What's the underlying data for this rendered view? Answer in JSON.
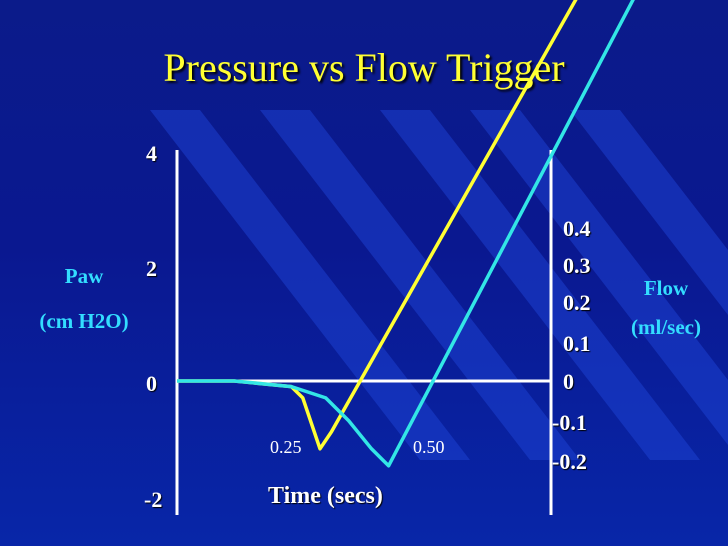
{
  "slide": {
    "title": "Pressure vs Flow Trigger"
  },
  "colors": {
    "background": "#0a1890",
    "title": "#ffff33",
    "pressure_line": "#ffff33",
    "flow_line": "#33e6e6",
    "axis": "#ffffff",
    "axis_label": "#33ddff"
  },
  "chart_data": {
    "type": "line",
    "title": "Pressure vs Flow Trigger",
    "xlabel": "Time (secs)",
    "x_ticks": [
      "0.25",
      "0.50"
    ],
    "left_axis": {
      "label_line1": "Paw",
      "label_line2": "(cm H2O)",
      "ticks": [
        "4",
        "2",
        "0",
        "-2"
      ],
      "ylim": [
        -2,
        4
      ]
    },
    "right_axis": {
      "label_line1": "Flow",
      "label_line2": "(ml/sec)",
      "ticks": [
        "0.4",
        "0.3",
        "0.2",
        "0.1",
        "0",
        "-0.1",
        "-0.2"
      ]
    },
    "series": [
      {
        "color": "#ffff33",
        "x": [
          0.0,
          0.1,
          0.2,
          0.22,
          0.25,
          0.27,
          0.7
        ],
        "y": [
          0.0,
          0.0,
          -0.1,
          -0.3,
          -1.2,
          -0.9,
          6.8
        ]
      },
      {
        "color": "#33e6e6",
        "x": [
          0.0,
          0.1,
          0.2,
          0.26,
          0.3,
          0.34,
          0.37,
          0.8
        ],
        "y": [
          0.0,
          0.0,
          -0.1,
          -0.3,
          -0.7,
          -1.2,
          -1.5,
          6.8
        ]
      }
    ]
  }
}
